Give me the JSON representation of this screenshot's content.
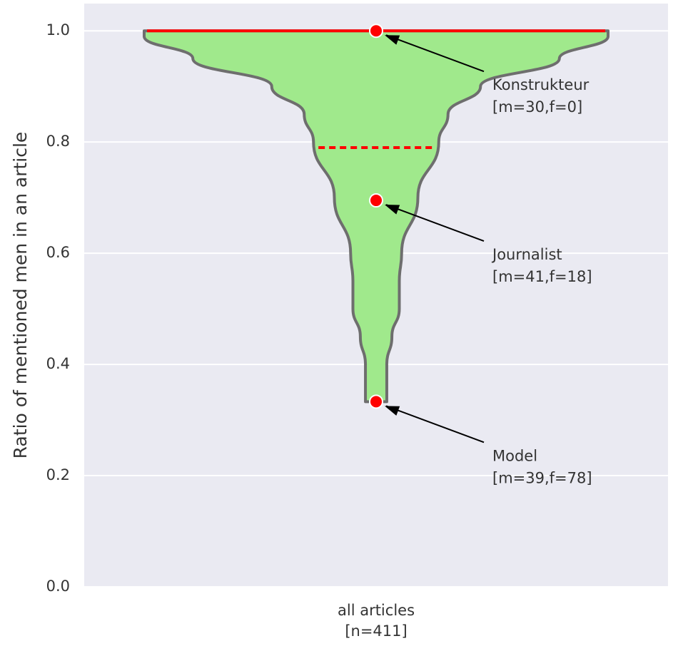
{
  "chart_data": {
    "type": "violin",
    "y_label": "Ratio of mentioned men in an article",
    "categories": [
      "all articles"
    ],
    "category_counts": [
      "[n=411]"
    ],
    "ylim": [
      0,
      1.049
    ],
    "yticks": [
      {
        "value": 0,
        "label": "0.0"
      },
      {
        "value": 0.2,
        "label": "0.2"
      },
      {
        "value": 0.4,
        "label": "0.4"
      },
      {
        "value": 0.6,
        "label": "0.6"
      },
      {
        "value": 0.8,
        "label": "0.8"
      },
      {
        "value": 1,
        "label": "1.0"
      }
    ],
    "grid": true,
    "violin_color": "#a0e98c",
    "outline_color": "#6e6e6e",
    "density_y": [
      1.0,
      0.99,
      0.95,
      0.9,
      0.85,
      0.8,
      0.7,
      0.6,
      0.55,
      0.5,
      0.45,
      0.4,
      0.333
    ],
    "density": [
      1.0,
      1.0,
      0.79,
      0.45,
      0.31,
      0.27,
      0.18,
      0.11,
      0.1,
      0.1,
      0.068,
      0.046,
      0.046
    ],
    "lines": [
      {
        "value": 1.0,
        "style": "solid"
      },
      {
        "value": 0.79,
        "style": "dashed"
      }
    ],
    "line_color": "#ff0000",
    "points": [
      {
        "label": "Konstrukteur",
        "detail": "[m=30,f=0]",
        "value": 1.0
      },
      {
        "label": "Journalist",
        "detail": "[m=41,f=18]",
        "value": 0.695
      },
      {
        "label": "Model",
        "detail": "[m=39,f=78]",
        "value": 0.333
      }
    ],
    "point_color": "#ff0000"
  }
}
